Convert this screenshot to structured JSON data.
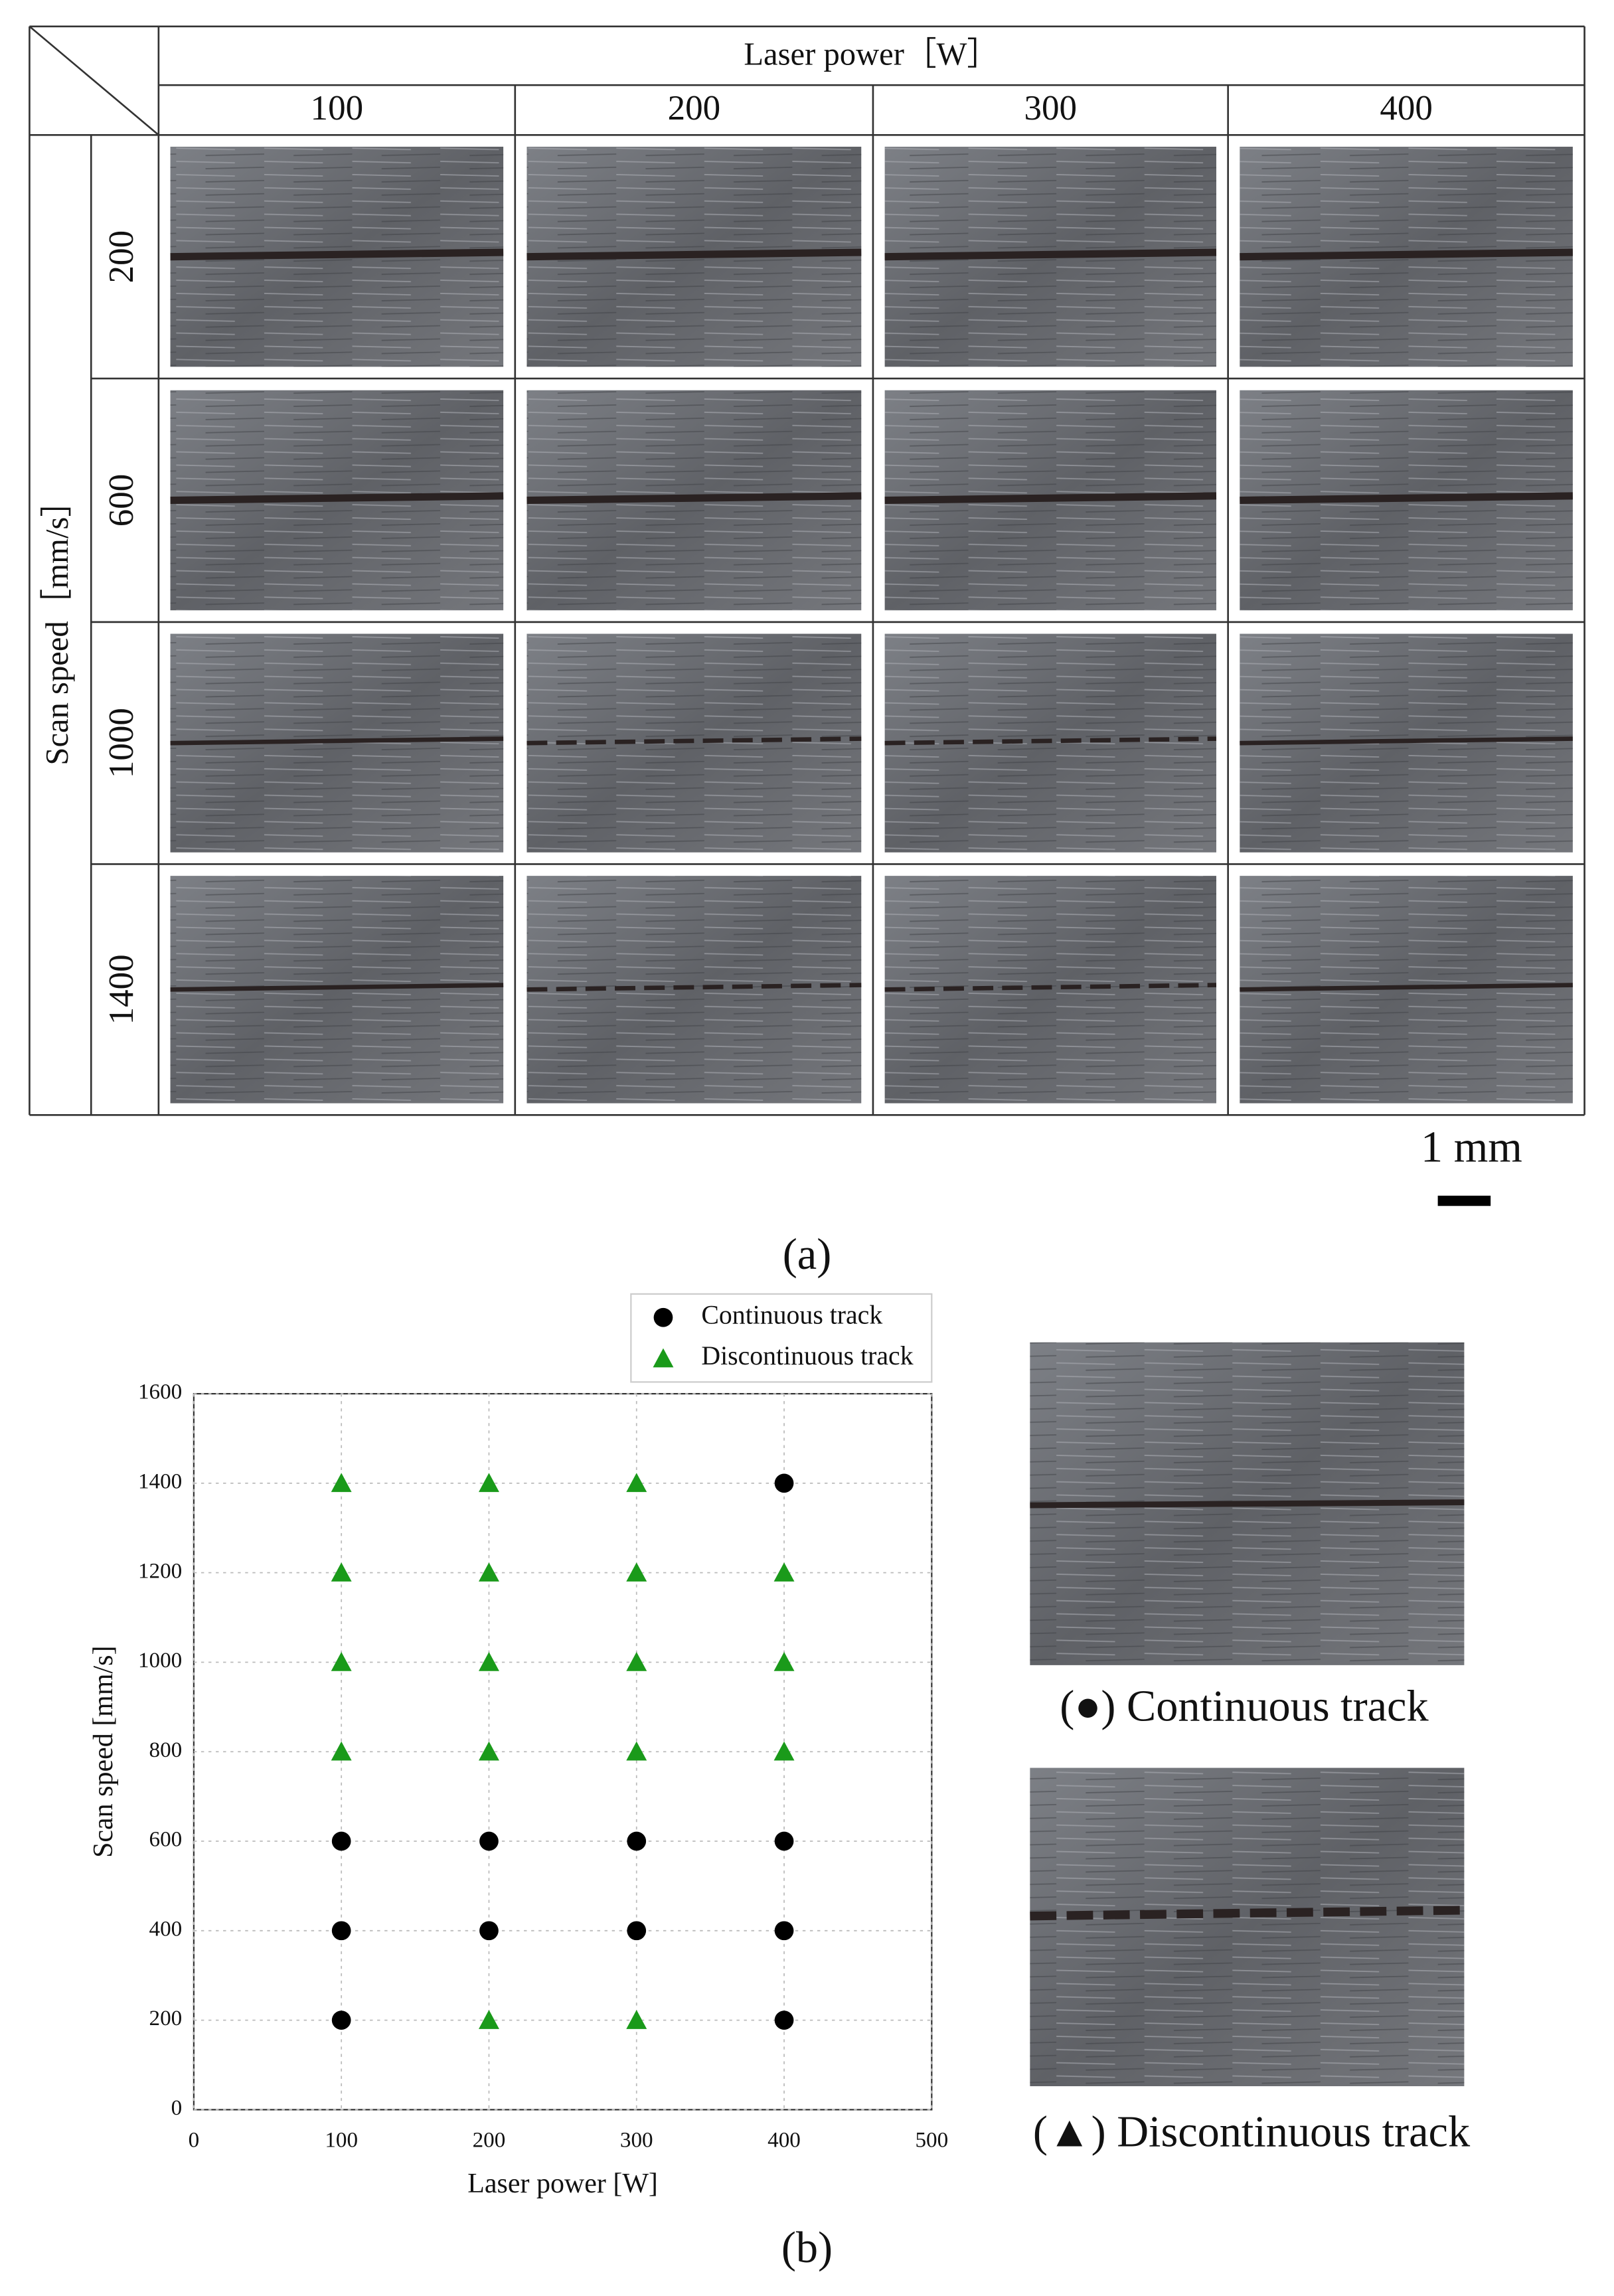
{
  "table": {
    "header": "Laser power［W］",
    "columns": [
      "100",
      "200",
      "300",
      "400"
    ],
    "row_header": "Scan speed［mm/s］",
    "rows": [
      "200",
      "600",
      "1000",
      "1400"
    ],
    "scale_bar": "1 mm",
    "caption": "(a)"
  },
  "chart_data": {
    "type": "scatter",
    "xlabel": "Laser power [W]",
    "ylabel": "Scan speed [mm/s]",
    "xlim": [
      0,
      500
    ],
    "ylim": [
      0,
      1600
    ],
    "xticks": [
      0,
      100,
      200,
      300,
      400,
      500
    ],
    "yticks": [
      0,
      200,
      400,
      600,
      800,
      1000,
      1200,
      1400,
      1600
    ],
    "grid": true,
    "legend": "top-right",
    "series": [
      {
        "name": "Continuous track",
        "color": "#000000",
        "marker": "circle",
        "x": [
          100,
          100,
          100,
          200,
          200,
          300,
          300,
          400,
          400,
          400,
          400
        ],
        "values": [
          200,
          400,
          600,
          400,
          600,
          400,
          600,
          200,
          400,
          600,
          1400
        ]
      },
      {
        "name": "Discontinuous track",
        "color": "#1a9a1a",
        "marker": "triangle",
        "x": [
          100,
          100,
          100,
          100,
          200,
          200,
          200,
          200,
          200,
          300,
          300,
          300,
          300,
          300,
          400,
          400,
          400
        ],
        "values": [
          800,
          1000,
          1200,
          1400,
          200,
          800,
          1000,
          1200,
          1400,
          200,
          800,
          1000,
          1200,
          1400,
          800,
          1000,
          1200
        ]
      }
    ]
  },
  "examples": [
    "(●) Continuous track",
    "(▲) Discontinuous track"
  ],
  "caption": "(b)"
}
